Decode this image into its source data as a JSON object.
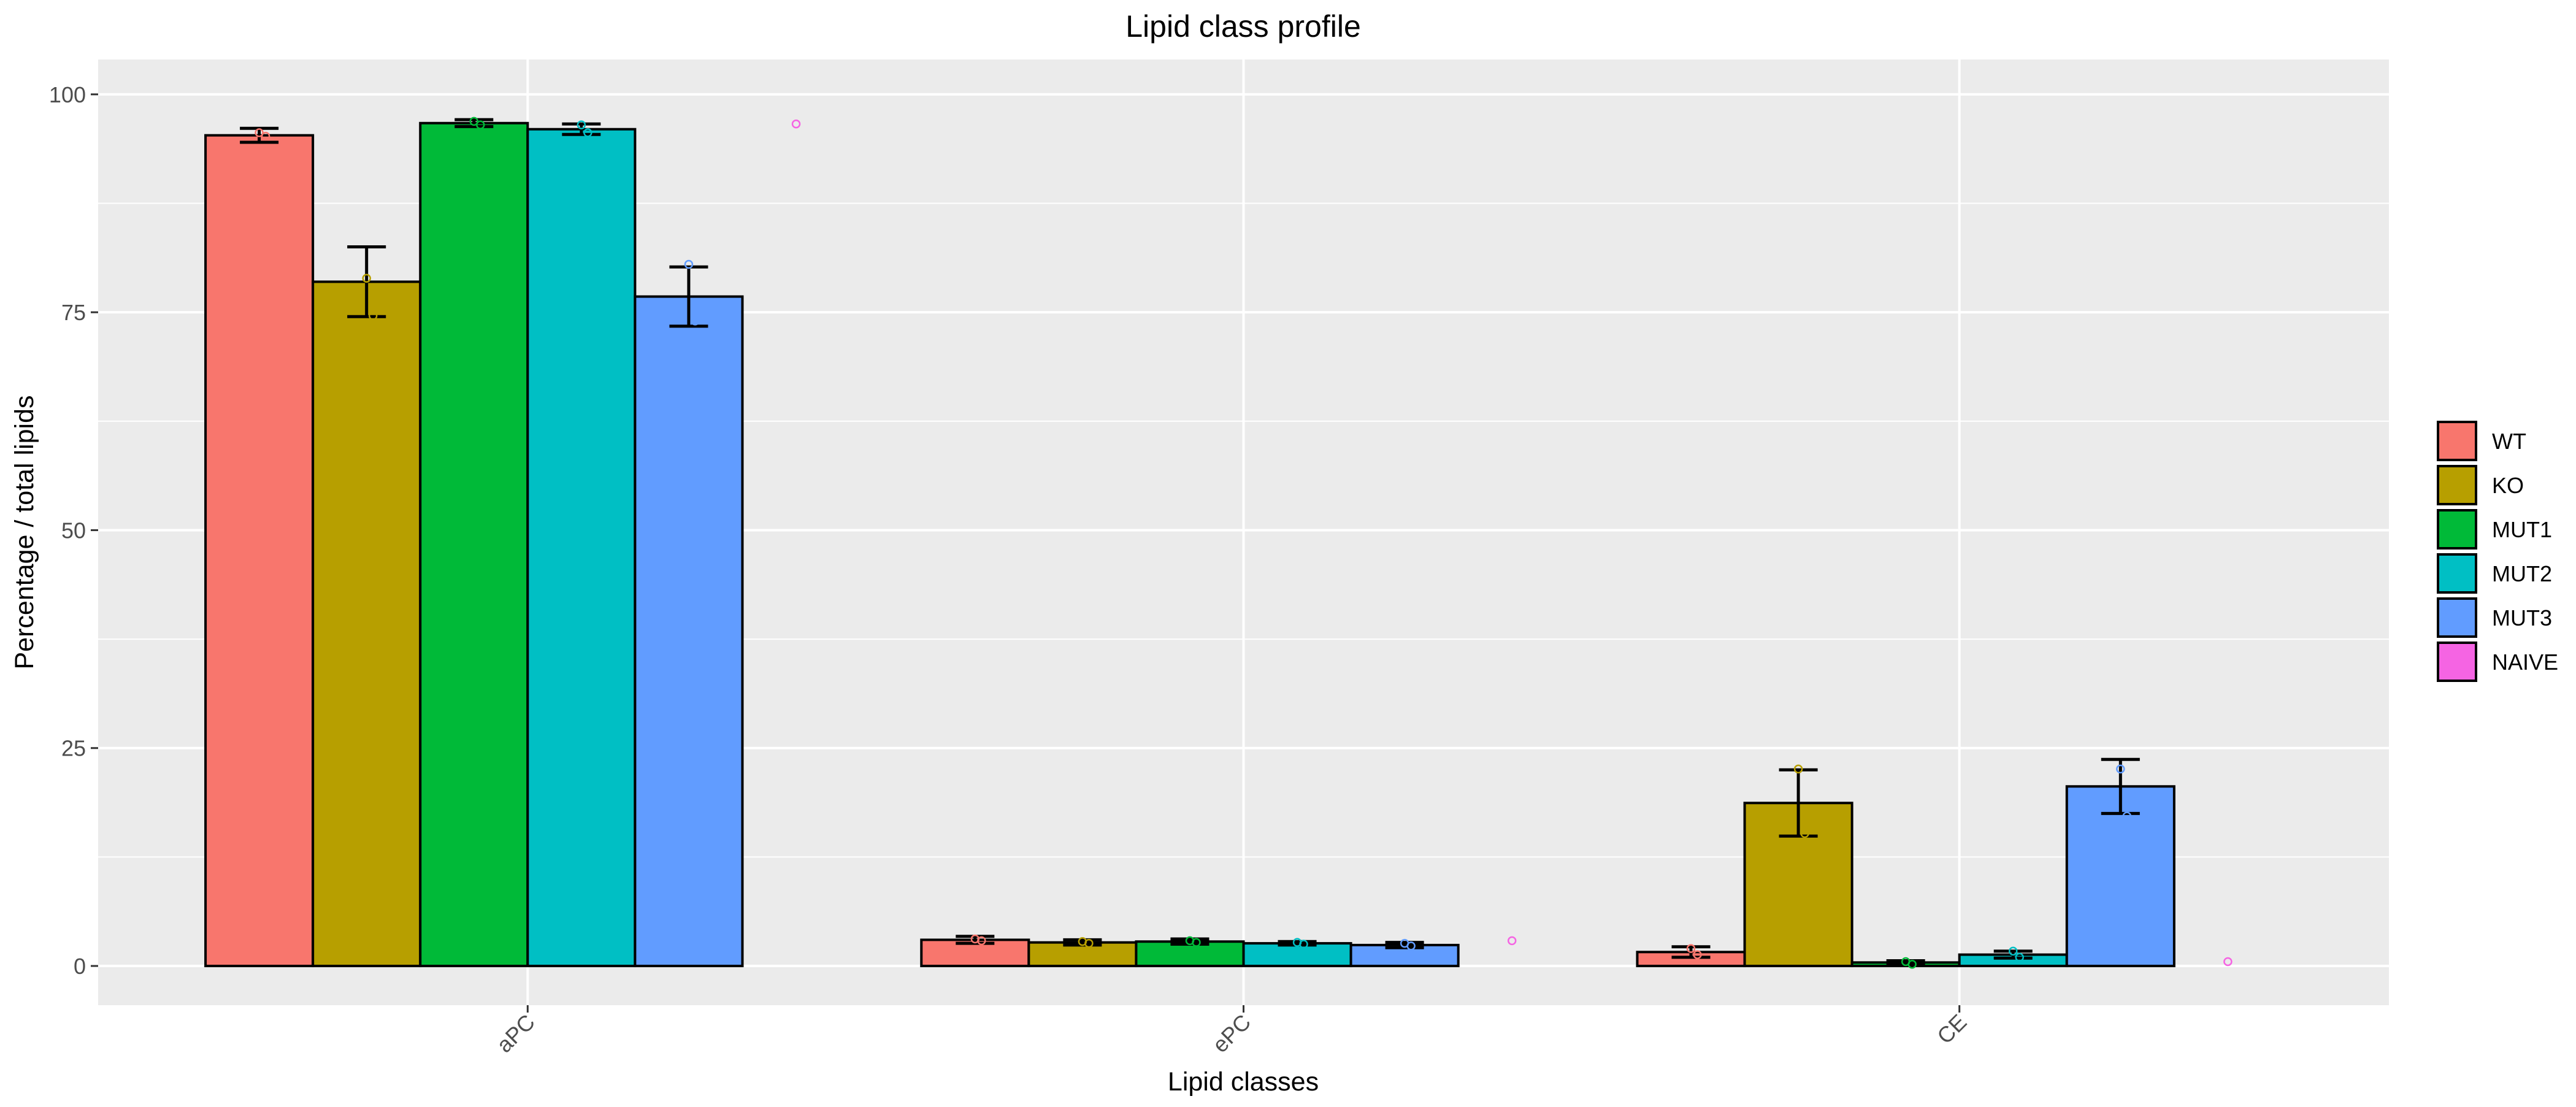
{
  "chart_data": {
    "type": "bar",
    "title": "Lipid class profile",
    "xlabel": "Lipid classes",
    "ylabel": "Percentage / total lipids",
    "ylim": [
      -4.5,
      104
    ],
    "yticks": [
      0,
      25,
      50,
      75,
      100
    ],
    "grid": true,
    "legend_position": "right",
    "categories": [
      "aPC",
      "ePC",
      "CE"
    ],
    "series": [
      {
        "name": "WT",
        "color": "#F8766D",
        "values": [
          95.3,
          3.0,
          1.6
        ],
        "errors": [
          0.8,
          0.4,
          0.6
        ],
        "points": [
          [
            95.6,
            95.2
          ],
          [
            3.1,
            2.9
          ],
          [
            2.0,
            1.3
          ]
        ]
      },
      {
        "name": "KO",
        "color": "#B79F00",
        "values": [
          78.5,
          2.7,
          18.7
        ],
        "errors": [
          4.0,
          0.3,
          3.8
        ],
        "points": [
          [
            78.9,
            74.6
          ],
          [
            2.8,
            2.6
          ],
          [
            22.6,
            15.2
          ]
        ]
      },
      {
        "name": "MUT1",
        "color": "#00BA38",
        "values": [
          96.7,
          2.8,
          0.4
        ],
        "errors": [
          0.4,
          0.3,
          0.2
        ],
        "points": [
          [
            96.9,
            96.5
          ],
          [
            2.9,
            2.7
          ],
          [
            0.5,
            0.2
          ]
        ]
      },
      {
        "name": "MUT2",
        "color": "#00BFC4",
        "values": [
          96.0,
          2.6,
          1.3
        ],
        "errors": [
          0.6,
          0.2,
          0.4
        ],
        "points": [
          [
            96.5,
            95.6
          ],
          [
            2.7,
            2.5
          ],
          [
            1.7,
            1.0
          ]
        ]
      },
      {
        "name": "MUT3",
        "color": "#619CFF",
        "values": [
          76.8,
          2.4,
          20.6
        ],
        "errors": [
          3.4,
          0.3,
          3.1
        ],
        "points": [
          [
            80.5,
            74.0
          ],
          [
            2.6,
            2.3
          ],
          [
            22.6,
            17.2
          ]
        ]
      },
      {
        "name": "NAIVE",
        "color": "#F564E3",
        "values": [
          null,
          null,
          null
        ],
        "errors": [
          null,
          null,
          null
        ],
        "points": [
          [
            96.6
          ],
          [
            2.9
          ],
          [
            0.5
          ]
        ]
      }
    ]
  }
}
